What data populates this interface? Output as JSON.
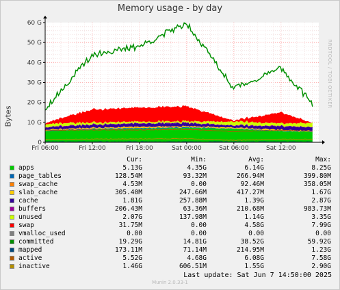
{
  "window": {
    "title": "Memory usage - by day"
  },
  "watermark": "RRDTOOL / TOBI OETIKER",
  "version": "Munin 2.0.33-1",
  "last_update": "Last update:  Sat Jun  7 14:50:00 2025",
  "colors": {
    "apps": "#00cc00",
    "page_tables": "#0066b3",
    "swap_cache": "#ff8000",
    "slab_cache": "#ffcc00",
    "cache": "#330099",
    "buffers": "#990099",
    "unused": "#ccff00",
    "swap": "#ff0000",
    "vmalloc_used": "#808080",
    "committed": "#008f00",
    "mapped": "#00487d",
    "active": "#b35a00",
    "inactive": "#b38f00",
    "grid": "#ff9999",
    "background": "#f0f0f0"
  },
  "legend": {
    "headers": [
      "Cur:",
      "Min:",
      "Avg:",
      "Max:"
    ],
    "rows": [
      {
        "name": "apps",
        "color": "#00cc00",
        "cur": "5.13G",
        "min": "4.35G",
        "avg": "6.14G",
        "max": "8.25G"
      },
      {
        "name": "page_tables",
        "color": "#0066b3",
        "cur": "128.54M",
        "min": "93.32M",
        "avg": "266.94M",
        "max": "399.80M"
      },
      {
        "name": "swap_cache",
        "color": "#ff8000",
        "cur": "4.53M",
        "min": "0.00",
        "avg": "92.46M",
        "max": "358.05M"
      },
      {
        "name": "slab_cache",
        "color": "#ffcc00",
        "cur": "305.40M",
        "min": "247.66M",
        "avg": "417.27M",
        "max": "1.67G"
      },
      {
        "name": "cache",
        "color": "#330099",
        "cur": "1.81G",
        "min": "257.88M",
        "avg": "1.39G",
        "max": "2.87G"
      },
      {
        "name": "buffers",
        "color": "#990099",
        "cur": "206.43M",
        "min": "63.36M",
        "avg": "210.68M",
        "max": "983.73M"
      },
      {
        "name": "unused",
        "color": "#ccff00",
        "cur": "2.07G",
        "min": "137.98M",
        "avg": "1.14G",
        "max": "3.35G"
      },
      {
        "name": "swap",
        "color": "#ff0000",
        "cur": "31.75M",
        "min": "0.00",
        "avg": "4.58G",
        "max": "7.99G"
      },
      {
        "name": "vmalloc_used",
        "color": "#808080",
        "cur": "0.00",
        "min": "0.00",
        "avg": "0.00",
        "max": "0.00"
      },
      {
        "name": "committed",
        "color": "#008f00",
        "cur": "19.29G",
        "min": "14.81G",
        "avg": "38.52G",
        "max": "59.92G"
      },
      {
        "name": "mapped",
        "color": "#00487d",
        "cur": "173.11M",
        "min": "71.14M",
        "avg": "214.95M",
        "max": "1.23G"
      },
      {
        "name": "active",
        "color": "#b35a00",
        "cur": "5.52G",
        "min": "4.68G",
        "avg": "6.08G",
        "max": "7.58G"
      },
      {
        "name": "inactive",
        "color": "#b38f00",
        "cur": "1.46G",
        "min": "606.51M",
        "avg": "1.55G",
        "max": "2.90G"
      }
    ]
  },
  "chart_data": {
    "type": "area",
    "title": "Memory usage - by day",
    "ylabel": "Bytes",
    "ylim": [
      0,
      60
    ],
    "y_unit": "G",
    "y_ticks": [
      "0",
      "10 G",
      "20 G",
      "30 G",
      "40 G",
      "50 G",
      "60 G"
    ],
    "x_ticks": [
      "Fri 06:00",
      "Fri 12:00",
      "Fri 18:00",
      "Sat 00:00",
      "Sat 06:00",
      "Sat 12:00"
    ],
    "x_hours": [
      0,
      6,
      12,
      18,
      24,
      30,
      34
    ],
    "grid": true,
    "stacked_series": [
      {
        "name": "apps",
        "values": [
          5.5,
          6.5,
          6.8,
          7.2,
          6.8,
          5.5,
          5.2
        ]
      },
      {
        "name": "page_tables",
        "values": [
          0.3,
          0.3,
          0.3,
          0.3,
          0.2,
          0.2,
          0.1
        ]
      },
      {
        "name": "swap_cache",
        "values": [
          0.1,
          0.1,
          0.1,
          0.1,
          0.0,
          0.1,
          0.0
        ]
      },
      {
        "name": "slab_cache",
        "values": [
          0.4,
          0.4,
          0.5,
          0.4,
          0.4,
          0.4,
          0.3
        ]
      },
      {
        "name": "cache",
        "values": [
          1.2,
          1.4,
          1.6,
          1.6,
          1.0,
          1.8,
          1.8
        ]
      },
      {
        "name": "buffers",
        "values": [
          0.2,
          0.2,
          0.2,
          0.2,
          0.2,
          0.2,
          0.2
        ]
      },
      {
        "name": "unused",
        "values": [
          1.5,
          1.0,
          0.8,
          0.7,
          1.8,
          1.2,
          2.1
        ]
      },
      {
        "name": "swap",
        "values": [
          0.5,
          6.5,
          7.0,
          7.5,
          0.5,
          5.5,
          0.0
        ]
      }
    ],
    "lines": [
      {
        "name": "committed",
        "values": [
          17.0,
          44.0,
          48.0,
          59.9,
          27.0,
          37.0,
          19.3
        ]
      },
      {
        "name": "active",
        "values": [
          6.0,
          6.2,
          6.2,
          6.5,
          5.4,
          6.0,
          5.5
        ]
      },
      {
        "name": "inactive",
        "values": [
          1.4,
          1.6,
          1.7,
          1.8,
          1.0,
          1.5,
          1.5
        ]
      },
      {
        "name": "mapped",
        "values": [
          0.2,
          0.2,
          0.2,
          0.2,
          0.2,
          0.2,
          0.2
        ]
      }
    ]
  }
}
